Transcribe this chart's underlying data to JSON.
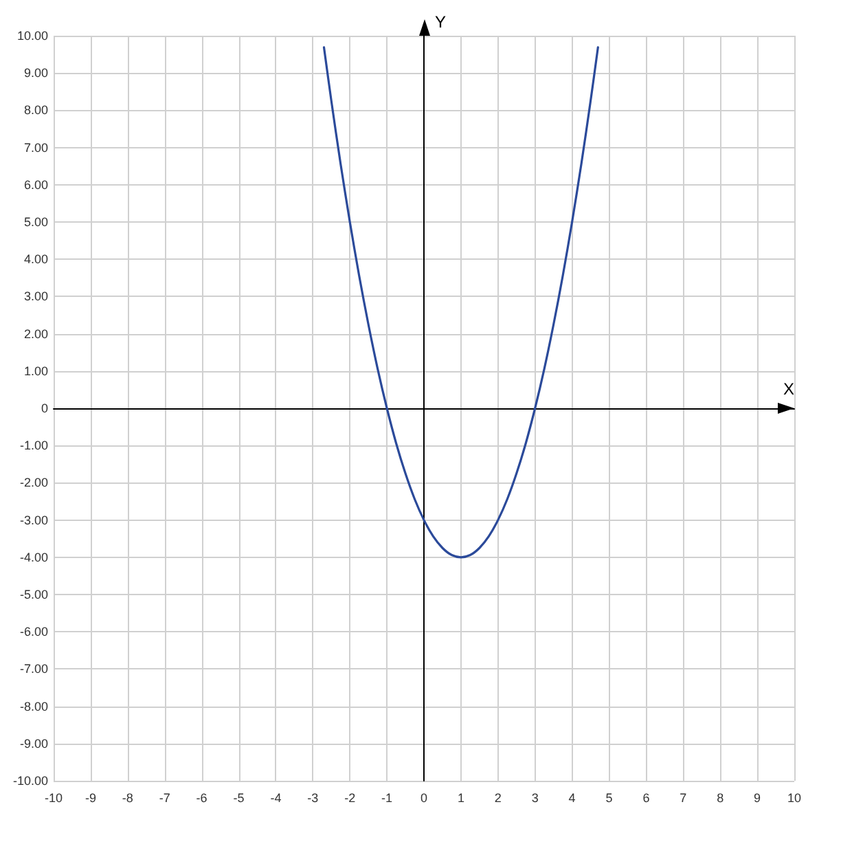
{
  "chart_data": {
    "type": "line",
    "xlabel": "X",
    "ylabel": "Y",
    "x": [
      -2.7,
      -2.5,
      -2.25,
      -2,
      -1.75,
      -1.5,
      -1.25,
      -1,
      -0.75,
      -0.5,
      -0.25,
      0,
      0.25,
      0.5,
      0.75,
      1,
      1.25,
      1.5,
      1.75,
      2,
      2.25,
      2.5,
      2.75,
      3,
      3.25,
      3.5,
      3.75,
      4,
      4.25,
      4.5,
      4.7
    ],
    "series": [
      {
        "color": "#2b4a9a",
        "values": [
          9.69,
          8.25,
          6.56,
          5,
          3.56,
          2.25,
          1.06,
          0,
          -0.94,
          -1.75,
          -2.44,
          -3,
          -3.44,
          -3.75,
          -3.94,
          -4,
          -3.94,
          -3.75,
          -3.44,
          -3,
          -2.44,
          -1.75,
          -0.94,
          0,
          1.06,
          2.25,
          3.56,
          5,
          6.56,
          8.25,
          9.69
        ]
      }
    ],
    "xlim": [
      -10,
      10
    ],
    "ylim": [
      -10,
      10
    ],
    "xticks": [
      -10,
      -9,
      -8,
      -7,
      -6,
      -5,
      -4,
      -3,
      -2,
      -1,
      0,
      1,
      2,
      3,
      4,
      5,
      6,
      7,
      8,
      9,
      10
    ],
    "yticks": [
      {
        "value": -10,
        "label": "-10.00"
      },
      {
        "value": -9,
        "label": "-9.00"
      },
      {
        "value": -8,
        "label": "-8.00"
      },
      {
        "value": -7,
        "label": "-7.00"
      },
      {
        "value": -6,
        "label": "-6.00"
      },
      {
        "value": -5,
        "label": "-5.00"
      },
      {
        "value": -4,
        "label": "-4.00"
      },
      {
        "value": -3,
        "label": "-3.00"
      },
      {
        "value": -2,
        "label": "-2.00"
      },
      {
        "value": -1,
        "label": "-1.00"
      },
      {
        "value": 0,
        "label": "0"
      },
      {
        "value": 1,
        "label": "1.00"
      },
      {
        "value": 2,
        "label": "2.00"
      },
      {
        "value": 3,
        "label": "3.00"
      },
      {
        "value": 4,
        "label": "4.00"
      },
      {
        "value": 5,
        "label": "5.00"
      },
      {
        "value": 6,
        "label": "6.00"
      },
      {
        "value": 7,
        "label": "7.00"
      },
      {
        "value": 8,
        "label": "8.00"
      },
      {
        "value": 9,
        "label": "9.00"
      },
      {
        "value": 10,
        "label": "10.00"
      }
    ],
    "grid": true,
    "marker": "none",
    "line_style": "solid"
  }
}
